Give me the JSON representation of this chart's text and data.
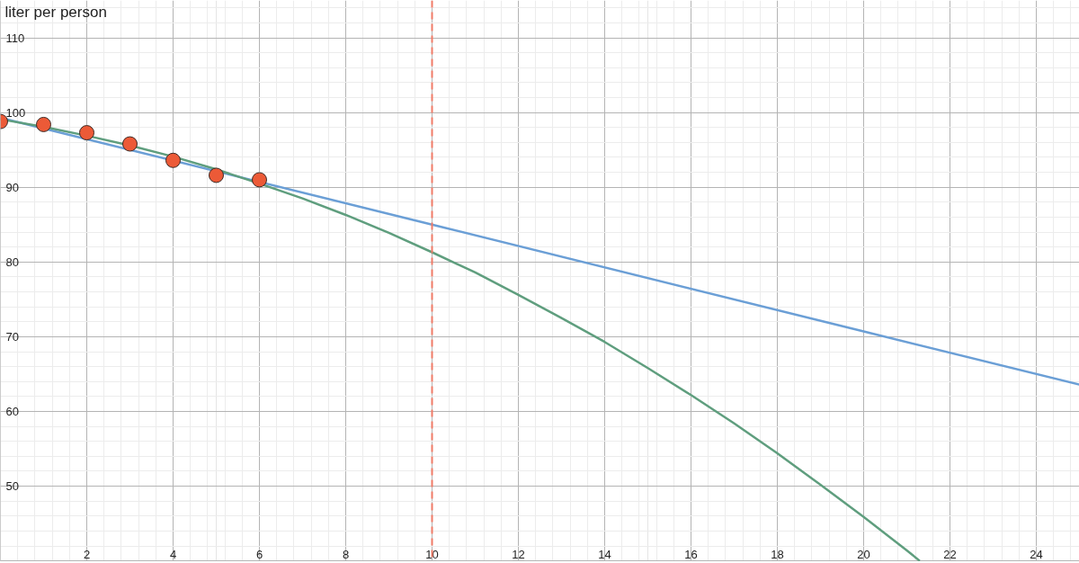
{
  "chart_data": {
    "type": "line",
    "ylabel": "liter per person",
    "xlim": [
      0,
      25
    ],
    "ylim": [
      39.9,
      115
    ],
    "xticks": [
      2,
      4,
      6,
      8,
      10,
      12,
      14,
      16,
      18,
      20,
      22,
      24
    ],
    "yticks": [
      50,
      60,
      70,
      80,
      90,
      100,
      110
    ],
    "grid": true,
    "series": [
      {
        "color": "#6b9fd6",
        "x": [
          0,
          10,
          20,
          25
        ],
        "values": [
          99.3,
          85.0,
          70.7,
          63.6
        ]
      },
      {
        "color": "#5f9e7e",
        "x": [
          0,
          1,
          2,
          3,
          4,
          5,
          6,
          7,
          8,
          9,
          10,
          11,
          12,
          13,
          14,
          15,
          16,
          17,
          18,
          19,
          20,
          21,
          21.3
        ],
        "values": [
          99.1,
          98.1,
          96.9,
          95.6,
          94.1,
          92.4,
          90.5,
          88.5,
          86.3,
          83.9,
          81.3,
          78.6,
          75.6,
          72.5,
          69.3,
          65.8,
          62.2,
          58.4,
          54.4,
          50.2,
          45.9,
          41.4,
          40.0
        ]
      },
      {
        "type": "scatter",
        "color": "#ec5a37",
        "marker": "circle",
        "x": [
          0,
          1,
          2,
          3,
          4,
          5,
          6
        ],
        "values": [
          98.8,
          98.4,
          97.3,
          95.8,
          93.6,
          91.6,
          91.0
        ]
      }
    ],
    "ref_lines": [
      {
        "axis": "x",
        "value": 10,
        "color": "#f07a66",
        "line_style": "dashed"
      }
    ]
  }
}
